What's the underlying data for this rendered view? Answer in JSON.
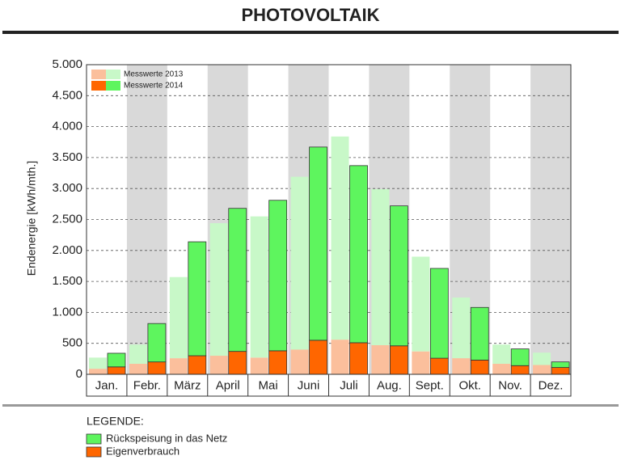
{
  "chart_data": {
    "type": "grouped_stacked_bar",
    "title": "PHOTOVOLTAIK",
    "y_label": "Endenergie [kWh/mth.]",
    "categories": [
      "Jan.",
      "Febr.",
      "März",
      "April",
      "Mai",
      "Juni",
      "Juli",
      "Aug.",
      "Sept.",
      "Okt.",
      "Nov.",
      "Dez."
    ],
    "ylim": [
      0,
      5000
    ],
    "yticks": [
      0,
      500,
      {
        "value": 1000,
        "label": "1.000"
      },
      {
        "value": 1500,
        "label": "1.500"
      },
      {
        "value": 2000,
        "label": "2.000"
      },
      {
        "value": 2500,
        "label": "2.500"
      },
      {
        "value": 3000,
        "label": "3.000"
      },
      {
        "value": 3500,
        "label": "3.500"
      },
      {
        "value": 4000,
        "label": "4.000"
      },
      {
        "value": 4500,
        "label": "4.500"
      },
      {
        "value": 5000,
        "label": "5.000"
      }
    ],
    "grid": true,
    "legend_title": "LEGENDE:",
    "stack_names": [
      "Eigenverbrauch",
      "Rückspeisung in das Netz"
    ],
    "groups": [
      {
        "name": "Messwerte 2013",
        "colors": [
          "#fbbf9c",
          "#c8f8c8"
        ],
        "series": [
          {
            "values": [
              90,
              170,
              260,
              300,
              270,
              400,
              560,
              470,
              370,
              260,
              170,
              150
            ]
          },
          {
            "values": [
              180,
              310,
              1310,
              2140,
              2280,
              2790,
              3280,
              2520,
              1530,
              980,
              310,
              200
            ]
          }
        ]
      },
      {
        "name": "Messwerte 2014",
        "colors": [
          "#ff6600",
          "#5ef55e"
        ],
        "series": [
          {
            "values": [
              120,
              200,
              300,
              370,
              380,
              550,
              510,
              460,
              260,
              230,
              140,
              110
            ]
          },
          {
            "values": [
              220,
              620,
              1840,
              2310,
              2430,
              3120,
              2860,
              2260,
              1450,
              850,
              270,
              90
            ]
          }
        ]
      }
    ]
  }
}
